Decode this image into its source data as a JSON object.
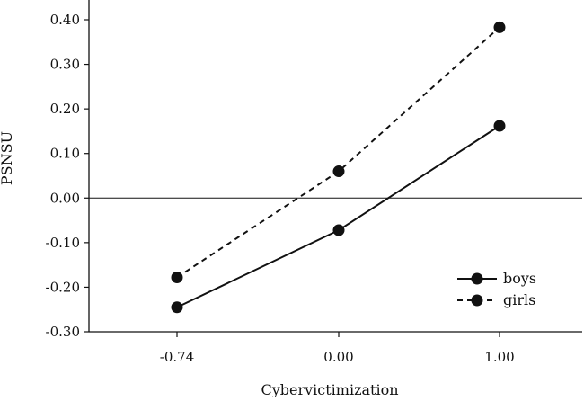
{
  "chart_data": {
    "type": "line",
    "title": "",
    "xlabel": "Cybervictimization",
    "ylabel": "PSNSU",
    "categories": [
      "-0.74",
      "0.00",
      "1.00"
    ],
    "x": [
      -0.74,
      0.0,
      1.0
    ],
    "ylim": [
      -0.3,
      0.4
    ],
    "yticks": [
      -0.3,
      -0.2,
      -0.1,
      0.0,
      0.1,
      0.2,
      0.3,
      0.4
    ],
    "ytick_labels": [
      "-0.30",
      "-0.20",
      "-0.10",
      "0.00",
      "0.10",
      "0.20",
      "0.30",
      "0.40"
    ],
    "series": [
      {
        "name": "boys",
        "values": [
          -0.245,
          -0.072,
          0.162
        ],
        "line_style": "solid",
        "color": "#111111"
      },
      {
        "name": "girls",
        "values": [
          -0.178,
          0.06,
          0.383
        ],
        "line_style": "dashed",
        "color": "#111111"
      }
    ],
    "reference_line_y": 0.0,
    "grid": false,
    "legend_position": "bottom-right"
  }
}
